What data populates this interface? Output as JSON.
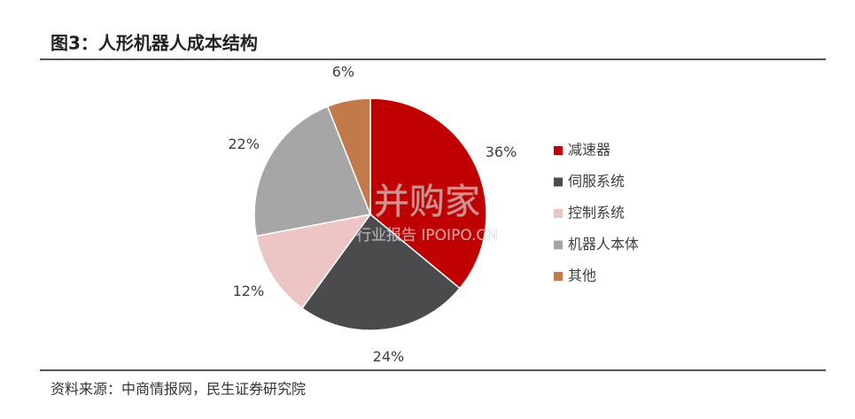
{
  "chart_data": {
    "type": "pie",
    "title": "图3：人形机器人成本结构",
    "categories": [
      "减速器",
      "伺服系统",
      "控制系统",
      "机器人本体",
      "其他"
    ],
    "values": [
      36,
      24,
      12,
      22,
      6
    ],
    "value_labels": [
      "36%",
      "24%",
      "12%",
      "22%",
      "6%"
    ],
    "colors": [
      "#c00000",
      "#4b4b4d",
      "#edc5c5",
      "#a6a6a6",
      "#c27a4a"
    ],
    "legend": "right",
    "source": "资料来源：中商情报网，民生证券研究院",
    "watermark": [
      "并购家",
      "行业报告 IPOIPO.CN"
    ]
  }
}
